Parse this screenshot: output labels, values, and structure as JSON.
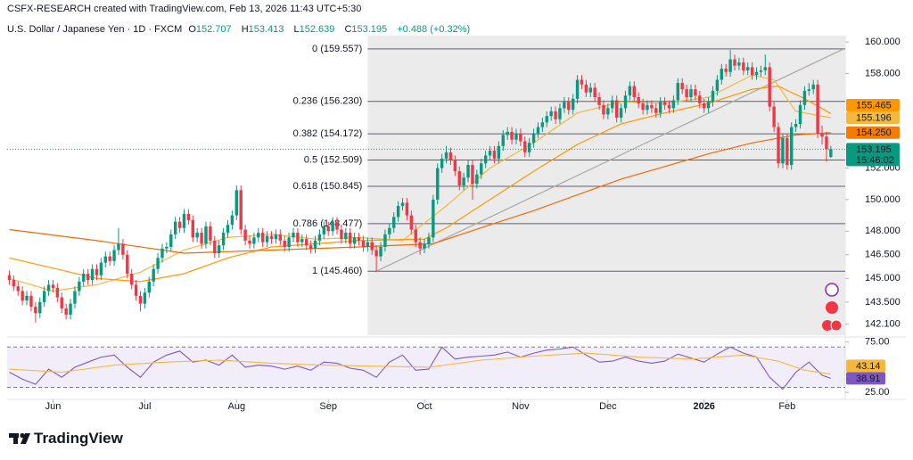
{
  "header": {
    "attribution": "CSFX-RESEARCH created with TradingView.com, Feb 13, 2026 11:43 UTC+5:30",
    "symbol": "U.S. Dollar / Japanese Yen · 1D · FXCM",
    "ohlc": [
      {
        "label": "O",
        "value": 152.707
      },
      {
        "label": "H",
        "value": 153.413
      },
      {
        "label": "L",
        "value": 152.639
      },
      {
        "label": "C",
        "value": 153.195
      }
    ],
    "change": "+0.488 (+0.32%)"
  },
  "chart_data": {
    "type": "candlestick",
    "xlim": [
      -0.5,
      191.3
    ],
    "xticks": [
      {
        "value": 10,
        "label": "Jun"
      },
      {
        "value": 31,
        "label": "Jul"
      },
      {
        "value": 52,
        "label": "Aug"
      },
      {
        "value": 73,
        "label": "Sep"
      },
      {
        "value": 95,
        "label": "Oct"
      },
      {
        "value": 117,
        "label": "Nov"
      },
      {
        "value": 137,
        "label": "Dec"
      },
      {
        "value": 159,
        "label": "2026"
      },
      {
        "value": 178,
        "label": "Feb"
      }
    ],
    "ylim": [
      141.4,
      160.4
    ],
    "yticks": [
      {
        "value": 160,
        "label": "160.000"
      },
      {
        "value": 158,
        "label": "158.000"
      },
      {
        "value": 152,
        "label": "152.000"
      },
      {
        "value": 150,
        "label": "150.000"
      },
      {
        "value": 148,
        "label": "148.000"
      },
      {
        "value": 146.5,
        "label": "146.500"
      },
      {
        "value": 145,
        "label": "145.000"
      },
      {
        "value": 143.5,
        "label": "143.500"
      },
      {
        "value": 142.1,
        "label": "142.100"
      }
    ],
    "grid": false,
    "up_color": "#089981",
    "down_color": "#f23645",
    "open": [
      145.2,
      144.9,
      144.5,
      144.2,
      143.6,
      143.9,
      143.2,
      142.8,
      143.5,
      144.2,
      144.6,
      144.4,
      143.8,
      143.1,
      142.7,
      143.4,
      144.2,
      144.8,
      145.3,
      144.9,
      145.6,
      145.2,
      146.0,
      146.4,
      146.1,
      146.8,
      147.2,
      146.5,
      145.3,
      144.6,
      143.9,
      143.4,
      144.1,
      144.8,
      145.6,
      146.3,
      146.9,
      147.0,
      147.8,
      148.6,
      148.2,
      149.1,
      148.7,
      147.6,
      147.9,
      147.2,
      148.3,
      147.4,
      146.6,
      147.1,
      147.9,
      148.4,
      149.0,
      150.6,
      148.1,
      147.4,
      147.2,
      147.6,
      147.9,
      147.3,
      147.7,
      147.5,
      147.8,
      147.4,
      147.0,
      147.6,
      147.9,
      147.3,
      147.5,
      147.1,
      146.9,
      147.4,
      147.8,
      148.3,
      148.0,
      148.6,
      148.1,
      147.5,
      147.9,
      147.2,
      147.6,
      147.4,
      147.0,
      147.3,
      146.8,
      146.4,
      147.0,
      147.8,
      148.2,
      148.9,
      149.6,
      149.8,
      149.0,
      148.1,
      147.3,
      146.9,
      147.2,
      147.6,
      150.0,
      152.0,
      152.6,
      153.0,
      152.5,
      151.8,
      150.9,
      151.4,
      152.2,
      151.0,
      151.6,
      152.3,
      152.8,
      153.1,
      152.6,
      153.4,
      154.1,
      154.3,
      153.8,
      154.2,
      153.7,
      153.0,
      153.6,
      154.2,
      154.6,
      154.9,
      155.3,
      155.6,
      155.1,
      155.8,
      156.2,
      155.7,
      156.4,
      157.6,
      157.3,
      156.8,
      157.1,
      156.5,
      156.0,
      155.4,
      155.8,
      156.3,
      155.2,
      155.8,
      156.6,
      157.2,
      156.5,
      156.1,
      155.7,
      156.0,
      155.8,
      155.5,
      156.2,
      156.0,
      155.8,
      156.3,
      157.4,
      157.0,
      156.5,
      157.0,
      156.6,
      156.1,
      155.8,
      156.2,
      156.9,
      157.6,
      158.3,
      158.1,
      158.9,
      158.5,
      158.7,
      158.2,
      158.4,
      157.9,
      158.1,
      158.2,
      158.4,
      155.9,
      154.6,
      152.3,
      153.9,
      152.2,
      154.6,
      154.8,
      156.0,
      156.9,
      157.0,
      157.3,
      154.2,
      154.0,
      152.707
    ],
    "high": [
      145.5,
      145.2,
      144.8,
      144.5,
      144.2,
      144.2,
      143.5,
      143.8,
      144.5,
      144.9,
      144.9,
      144.7,
      144.1,
      143.4,
      143.7,
      144.5,
      145.1,
      145.6,
      145.6,
      145.9,
      145.9,
      146.3,
      146.7,
      146.7,
      147.1,
      148.2,
      147.5,
      146.8,
      145.6,
      144.9,
      144.2,
      144.4,
      145.1,
      145.9,
      146.6,
      147.2,
      147.3,
      148.1,
      148.9,
      148.9,
      149.4,
      149.4,
      149.0,
      148.2,
      148.2,
      148.6,
      148.6,
      147.7,
      147.4,
      148.2,
      148.7,
      149.3,
      150.9,
      150.9,
      148.4,
      147.7,
      147.9,
      148.2,
      148.2,
      148.0,
      148.0,
      148.1,
      148.1,
      147.7,
      147.9,
      148.2,
      148.2,
      147.8,
      147.8,
      147.4,
      147.7,
      148.1,
      148.6,
      148.6,
      148.9,
      148.9,
      148.4,
      148.2,
      148.2,
      147.9,
      147.9,
      147.7,
      147.6,
      147.6,
      147.1,
      147.3,
      148.1,
      148.5,
      149.2,
      149.9,
      150.1,
      150.1,
      149.3,
      148.4,
      147.6,
      147.5,
      147.9,
      150.3,
      152.3,
      152.9,
      153.4,
      153.3,
      152.8,
      152.1,
      151.7,
      152.5,
      152.5,
      151.9,
      152.6,
      153.1,
      153.4,
      153.4,
      153.7,
      154.4,
      154.6,
      154.6,
      154.5,
      154.5,
      154.0,
      153.9,
      154.5,
      154.9,
      155.2,
      155.6,
      155.9,
      155.9,
      156.1,
      156.5,
      156.5,
      156.7,
      157.9,
      157.9,
      157.6,
      157.4,
      157.4,
      156.8,
      156.3,
      156.1,
      156.6,
      156.6,
      156.1,
      156.9,
      157.5,
      157.5,
      156.8,
      156.4,
      156.3,
      156.3,
      156.1,
      156.5,
      156.5,
      156.3,
      156.6,
      157.7,
      157.7,
      157.3,
      157.3,
      157.3,
      156.9,
      156.4,
      156.5,
      157.2,
      157.9,
      158.6,
      158.6,
      159.5,
      159.2,
      159.0,
      159.0,
      158.7,
      158.7,
      158.4,
      158.5,
      159.2,
      158.7,
      156.2,
      154.9,
      154.2,
      154.2,
      154.9,
      155.1,
      156.3,
      157.2,
      157.4,
      157.6,
      157.6,
      154.7,
      154.3,
      153.413
    ],
    "low": [
      144.6,
      144.2,
      143.9,
      143.3,
      143.3,
      142.9,
      142.2,
      142.5,
      143.2,
      143.9,
      144.1,
      143.5,
      142.8,
      142.4,
      142.4,
      143.1,
      143.9,
      144.5,
      144.6,
      144.6,
      144.9,
      144.9,
      145.7,
      145.8,
      145.8,
      146.5,
      146.2,
      145.0,
      144.3,
      143.6,
      142.9,
      143.1,
      143.8,
      144.5,
      145.3,
      146.0,
      146.6,
      146.7,
      147.5,
      147.9,
      147.9,
      148.4,
      147.3,
      147.3,
      146.9,
      146.9,
      147.1,
      146.3,
      146.3,
      146.8,
      147.6,
      148.1,
      148.7,
      147.8,
      147.1,
      146.9,
      146.9,
      147.3,
      147.0,
      147.0,
      147.2,
      147.2,
      147.1,
      146.7,
      146.7,
      147.3,
      147.0,
      147.0,
      146.8,
      146.6,
      146.6,
      147.1,
      147.5,
      147.7,
      147.7,
      147.8,
      147.2,
      147.2,
      146.9,
      146.9,
      147.1,
      146.7,
      146.7,
      146.5,
      145.4,
      146.1,
      146.7,
      147.5,
      147.9,
      148.6,
      149.3,
      148.7,
      147.8,
      147.0,
      146.5,
      146.6,
      146.9,
      147.3,
      149.7,
      151.7,
      152.3,
      152.2,
      151.5,
      150.6,
      150.6,
      151.1,
      150.0,
      150.7,
      151.3,
      152.0,
      152.5,
      152.3,
      152.3,
      153.1,
      153.8,
      153.5,
      153.5,
      153.4,
      152.7,
      152.7,
      153.3,
      153.9,
      154.3,
      154.6,
      155.0,
      154.8,
      154.8,
      155.5,
      155.4,
      155.4,
      156.1,
      157.0,
      156.5,
      156.5,
      156.2,
      155.7,
      155.1,
      155.1,
      155.5,
      154.9,
      154.9,
      155.5,
      156.3,
      156.2,
      155.8,
      155.4,
      155.4,
      155.5,
      155.2,
      155.2,
      155.7,
      155.5,
      155.5,
      156.0,
      156.7,
      156.2,
      156.2,
      156.3,
      155.8,
      155.5,
      155.5,
      155.9,
      156.6,
      157.3,
      157.8,
      157.8,
      158.2,
      158.2,
      157.9,
      157.9,
      157.6,
      157.6,
      157.8,
      157.9,
      155.6,
      154.3,
      152.0,
      152.0,
      151.9,
      151.9,
      154.3,
      154.5,
      155.7,
      156.6,
      156.7,
      153.9,
      153.5,
      152.4,
      152.639
    ],
    "close": [
      144.9,
      144.5,
      144.2,
      143.6,
      143.9,
      143.2,
      142.8,
      143.5,
      144.2,
      144.6,
      144.4,
      143.8,
      143.1,
      142.7,
      143.4,
      144.2,
      144.8,
      145.3,
      144.9,
      145.6,
      145.2,
      146.0,
      146.4,
      146.1,
      146.8,
      147.2,
      146.5,
      145.3,
      144.6,
      143.9,
      143.4,
      144.1,
      144.8,
      145.6,
      146.3,
      146.9,
      147.0,
      147.8,
      148.6,
      148.2,
      149.1,
      148.7,
      147.6,
      147.9,
      147.2,
      148.3,
      147.4,
      146.6,
      147.1,
      147.9,
      148.4,
      149.0,
      150.6,
      148.1,
      147.4,
      147.2,
      147.6,
      147.9,
      147.3,
      147.7,
      147.5,
      147.8,
      147.4,
      147.0,
      147.6,
      147.9,
      147.3,
      147.5,
      147.1,
      146.9,
      147.4,
      147.8,
      148.3,
      148.0,
      148.6,
      148.1,
      147.5,
      147.9,
      147.2,
      147.6,
      147.4,
      147.0,
      147.3,
      146.8,
      146.4,
      147.0,
      147.8,
      148.2,
      148.9,
      149.6,
      149.8,
      149.0,
      148.1,
      147.3,
      146.9,
      147.2,
      147.6,
      150.0,
      152.0,
      152.6,
      153.0,
      152.5,
      151.8,
      150.9,
      151.4,
      152.2,
      151.0,
      151.6,
      152.3,
      152.8,
      153.1,
      152.6,
      153.4,
      154.1,
      154.3,
      153.8,
      154.2,
      153.7,
      153.0,
      153.6,
      154.2,
      154.6,
      154.9,
      155.3,
      155.6,
      155.1,
      155.8,
      156.2,
      155.7,
      156.4,
      157.6,
      157.3,
      156.8,
      157.1,
      156.5,
      156.0,
      155.4,
      155.8,
      156.3,
      155.2,
      155.8,
      156.6,
      157.2,
      156.5,
      156.1,
      155.7,
      156.0,
      155.8,
      155.5,
      156.2,
      156.0,
      155.8,
      156.3,
      157.4,
      157.0,
      156.5,
      157.0,
      156.6,
      156.1,
      155.8,
      156.2,
      156.9,
      157.6,
      158.3,
      158.1,
      158.9,
      158.5,
      158.7,
      158.2,
      158.4,
      157.9,
      158.1,
      158.2,
      158.4,
      155.9,
      154.6,
      152.3,
      153.9,
      152.2,
      154.6,
      154.8,
      156.0,
      156.9,
      157.0,
      157.3,
      154.2,
      154.0,
      153.2,
      153.195
    ],
    "overlays": [
      {
        "type": "line",
        "color": "#f5b83d",
        "x": [
          0,
          10,
          20,
          30,
          40,
          50,
          60,
          70,
          80,
          90,
          100,
          110,
          120,
          130,
          140,
          150,
          160,
          170,
          175,
          180,
          188
        ],
        "values": [
          145.0,
          144.2,
          144.6,
          145.4,
          146.8,
          147.6,
          147.8,
          147.5,
          147.6,
          147.4,
          149.6,
          152.0,
          153.6,
          155.5,
          156.2,
          156.1,
          156.5,
          157.9,
          157.6,
          155.6,
          155.196
        ]
      },
      {
        "type": "line",
        "color": "#ff9800",
        "x": [
          0,
          20,
          30,
          40,
          50,
          60,
          80,
          95,
          100,
          110,
          120,
          130,
          140,
          150,
          160,
          170,
          176,
          182,
          188
        ],
        "values": [
          146.3,
          145.0,
          144.8,
          145.3,
          146.3,
          147.0,
          147.4,
          147.5,
          148.2,
          150.0,
          151.8,
          153.5,
          154.8,
          155.5,
          156.1,
          157.0,
          157.2,
          156.4,
          155.465
        ]
      },
      {
        "type": "line",
        "color": "#ef6c00",
        "x": [
          0,
          20,
          40,
          60,
          80,
          97,
          110,
          120,
          130,
          140,
          150,
          160,
          170,
          180,
          188
        ],
        "values": [
          148.1,
          147.4,
          146.6,
          146.8,
          147.0,
          147.2,
          148.4,
          149.3,
          150.3,
          151.3,
          152.1,
          152.9,
          153.6,
          154.1,
          154.25
        ]
      }
    ],
    "trendline": {
      "color": "#a8a8a8",
      "x": [
        84,
        190.9
      ],
      "values": [
        145.46,
        159.557
      ]
    },
    "fib": {
      "x_start": 82,
      "color": "#5d606b",
      "shade": "#ebebeb",
      "levels": [
        {
          "value": 159.557,
          "label": "0 (159.557)"
        },
        {
          "value": 156.23,
          "label": "0.236 (156.230)"
        },
        {
          "value": 154.172,
          "label": "0.382 (154.172)"
        },
        {
          "value": 152.509,
          "label": "0.5 (152.509)"
        },
        {
          "value": 150.845,
          "label": "0.618 (150.845)"
        },
        {
          "value": 148.477,
          "label": "0.786 (148.477)"
        },
        {
          "value": 145.46,
          "label": "1 (145.460)"
        }
      ]
    },
    "price_badges": [
      {
        "value": 153.195,
        "label": "153.195",
        "sublabel": "15:46:02",
        "color": "#089981"
      },
      {
        "value": 154.25,
        "label": "154.250",
        "color": "#f57c00"
      },
      {
        "value": 155.196,
        "label": "155.196",
        "color": "#f5b83d"
      },
      {
        "value": 155.465,
        "label": "155.465",
        "color": "#ff9800"
      }
    ],
    "rsi": {
      "ylim": [
        18,
        80
      ],
      "yticks": [
        {
          "value": 75,
          "label": "75.00"
        },
        {
          "value": 25,
          "label": "25.00"
        }
      ],
      "bands": [
        70,
        30
      ],
      "band_color": "#7e57c2",
      "series": [
        {
          "color": "#7e57c2",
          "x": [
            0,
            3,
            6,
            9,
            12,
            15,
            18,
            21,
            24,
            27,
            30,
            33,
            36,
            39,
            42,
            45,
            48,
            51,
            54,
            57,
            60,
            63,
            66,
            69,
            72,
            75,
            78,
            81,
            84,
            87,
            90,
            93,
            96,
            99,
            102,
            105,
            108,
            111,
            114,
            117,
            120,
            123,
            126,
            129,
            132,
            135,
            138,
            141,
            144,
            147,
            150,
            153,
            156,
            159,
            162,
            165,
            168,
            171,
            174,
            177,
            180,
            183,
            186,
            188
          ],
          "values": [
            45,
            38,
            33,
            48,
            40,
            50,
            55,
            60,
            62,
            50,
            40,
            55,
            62,
            66,
            55,
            57,
            52,
            62,
            50,
            52,
            51,
            48,
            51,
            47,
            55,
            54,
            49,
            47,
            40,
            55,
            62,
            47,
            48,
            70,
            58,
            60,
            61,
            62,
            65,
            60,
            64,
            67,
            68,
            70,
            62,
            55,
            56,
            60,
            56,
            54,
            56,
            63,
            59,
            55,
            63,
            70,
            64,
            60,
            40,
            28,
            45,
            55,
            42,
            38.91
          ]
        },
        {
          "color": "#f5b83d",
          "x": [
            0,
            12,
            24,
            36,
            48,
            60,
            72,
            84,
            96,
            108,
            120,
            132,
            144,
            156,
            168,
            176,
            182,
            188
          ],
          "values": [
            48,
            45,
            52,
            55,
            57,
            54,
            52,
            51,
            50,
            57,
            61,
            64,
            60,
            58,
            62,
            56,
            47,
            43.14
          ]
        }
      ],
      "badges": [
        {
          "value": 38.91,
          "label": "38.91",
          "color": "#7e57c2"
        },
        {
          "value": 43.14,
          "label": "43.14",
          "color": "#f5b83d"
        }
      ]
    }
  },
  "footer": {
    "brand": "TradingView"
  }
}
